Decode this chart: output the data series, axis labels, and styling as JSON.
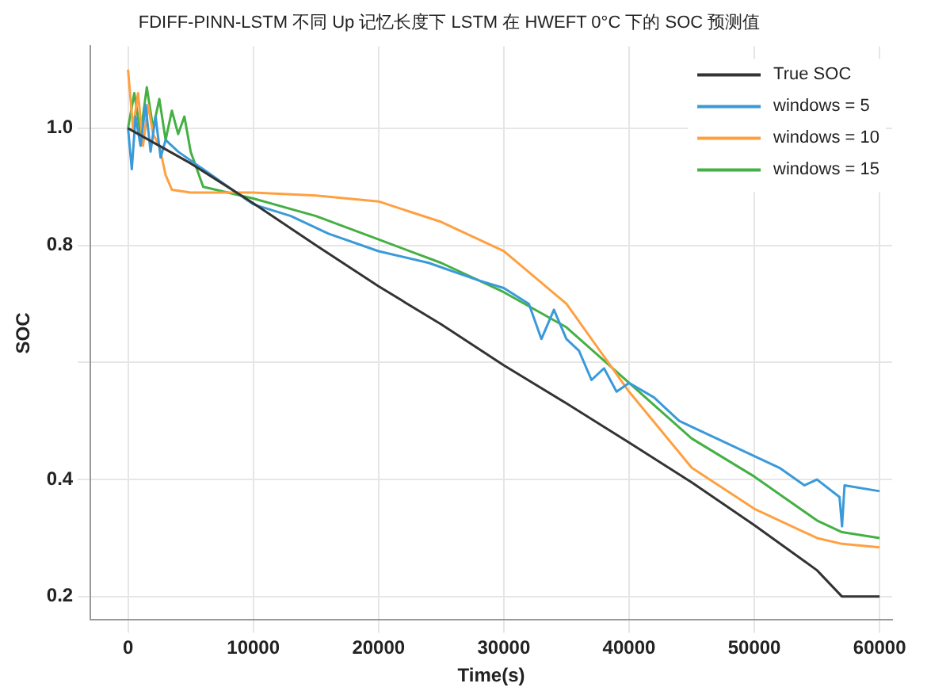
{
  "chart_data": {
    "type": "line",
    "title": "FDIFF-PINN-LSTM 不同 Up 记忆长度下 LSTM 在 HWEFT 0°C 下的 SOC 预测值",
    "xlabel": "Time(s)",
    "ylabel": "SOC",
    "xlim": [
      -3000,
      61000
    ],
    "ylim": [
      0.16,
      1.14
    ],
    "xticks": [
      0,
      10000,
      20000,
      30000,
      40000,
      50000,
      60000
    ],
    "yticks": [
      0.2,
      0.4,
      {
        "value": 0.6,
        "label": null
      },
      0.8,
      {
        "value": 1.0,
        "label": "1.0"
      }
    ],
    "grid": true,
    "legend": "top right",
    "marker": "none",
    "line_style": "solid",
    "series": [
      {
        "name": "True SOC",
        "color": "#333333",
        "x": [
          0,
          5000,
          10000,
          15000,
          20000,
          25000,
          30000,
          35000,
          40000,
          45000,
          50000,
          55000,
          57000,
          60000
        ],
        "values": [
          1.0,
          0.94,
          0.872,
          0.8,
          0.73,
          0.665,
          0.595,
          0.53,
          0.463,
          0.395,
          0.322,
          0.245,
          0.2,
          0.2
        ]
      },
      {
        "name": "windows = 5",
        "color": "#3a9ad9",
        "x": [
          0,
          300,
          600,
          1000,
          1400,
          1800,
          2200,
          2600,
          3000,
          4000,
          6000,
          8000,
          10000,
          13000,
          16000,
          20000,
          24000,
          28000,
          30000,
          32000,
          33000,
          34000,
          35000,
          36000,
          37000,
          38000,
          39000,
          40000,
          42000,
          44000,
          45000,
          47000,
          50000,
          52000,
          54000,
          55000,
          56800,
          57000,
          57200,
          60000
        ],
        "values": [
          1.0,
          0.93,
          1.02,
          0.97,
          1.04,
          0.96,
          1.02,
          0.95,
          0.98,
          0.96,
          0.93,
          0.9,
          0.87,
          0.85,
          0.82,
          0.79,
          0.77,
          0.74,
          0.727,
          0.7,
          0.64,
          0.69,
          0.64,
          0.62,
          0.57,
          0.59,
          0.55,
          0.565,
          0.54,
          0.5,
          0.49,
          0.47,
          0.44,
          0.42,
          0.39,
          0.4,
          0.37,
          0.32,
          0.39,
          0.38
        ]
      },
      {
        "name": "windows = 10",
        "color": "#ffa040",
        "x": [
          0,
          400,
          800,
          1200,
          1600,
          2000,
          2500,
          3000,
          3500,
          5000,
          10000,
          15000,
          20000,
          25000,
          30000,
          35000,
          40000,
          45000,
          50000,
          55000,
          57000,
          60000
        ],
        "values": [
          1.1,
          1.0,
          1.06,
          0.97,
          1.04,
          0.99,
          0.97,
          0.92,
          0.895,
          0.89,
          0.89,
          0.885,
          0.875,
          0.84,
          0.79,
          0.7,
          0.55,
          0.42,
          0.35,
          0.3,
          0.29,
          0.284
        ]
      },
      {
        "name": "windows = 15",
        "color": "#44b044",
        "x": [
          0,
          500,
          1000,
          1500,
          2000,
          2500,
          3000,
          3500,
          4000,
          4500,
          5000,
          6000,
          10000,
          15000,
          20000,
          25000,
          30000,
          35000,
          40000,
          45000,
          50000,
          55000,
          57000,
          60000
        ],
        "values": [
          1.0,
          1.06,
          0.99,
          1.07,
          1.0,
          1.05,
          0.98,
          1.03,
          0.99,
          1.02,
          0.96,
          0.9,
          0.88,
          0.85,
          0.81,
          0.77,
          0.72,
          0.66,
          0.565,
          0.47,
          0.405,
          0.33,
          0.31,
          0.3
        ]
      }
    ]
  }
}
